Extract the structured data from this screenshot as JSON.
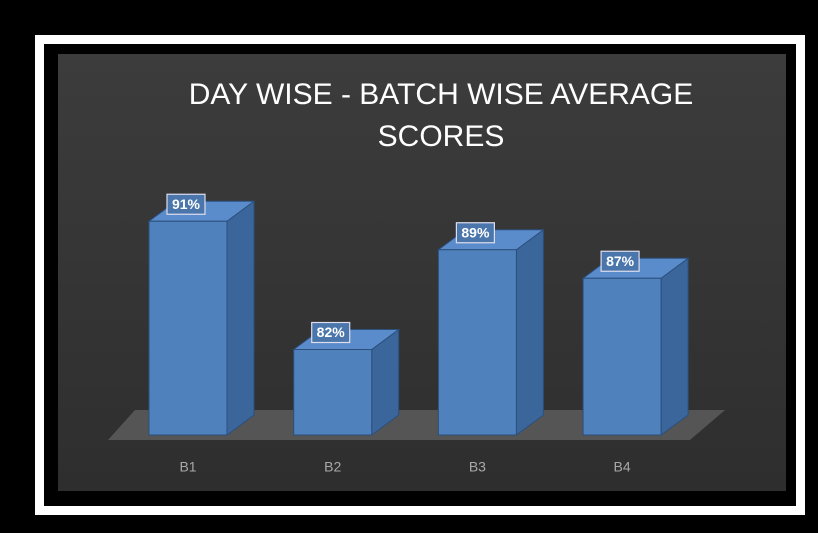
{
  "chart_data": {
    "type": "bar3d",
    "title": "DAY WISE - BATCH WISE AVERAGE SCORES",
    "categories": [
      "B1",
      "B2",
      "B3",
      "B4"
    ],
    "values": [
      91,
      82,
      89,
      87
    ],
    "value_labels": [
      "91%",
      "82%",
      "89%",
      "87%"
    ],
    "color": "#4f81bd",
    "ylim": [
      76,
      92
    ]
  }
}
